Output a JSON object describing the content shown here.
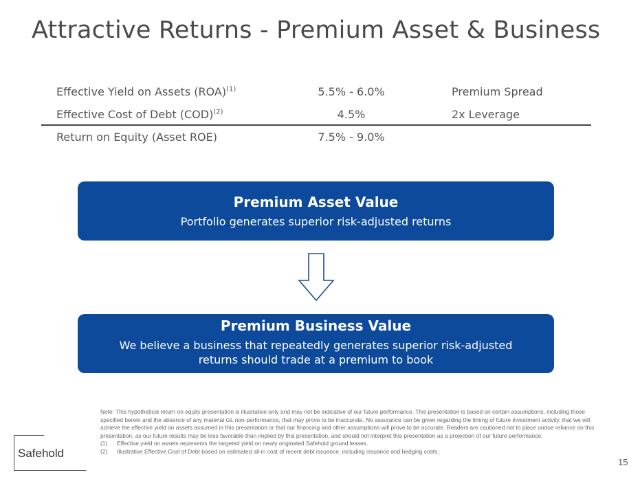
{
  "title": "Attractive Returns - Premium Asset & Business",
  "table": {
    "rows": [
      {
        "label": "Effective Yield on Assets (ROA)",
        "sup": "(1)",
        "value": "5.5% - 6.0%",
        "note": "Premium Spread"
      },
      {
        "label": "Effective Cost of Debt (COD)",
        "sup": "(2)",
        "value": "4.5%",
        "note": "2x Leverage"
      },
      {
        "label": "Return on Equity (Asset ROE)",
        "sup": "",
        "value": "7.5% - 9.0%",
        "note": ""
      }
    ]
  },
  "box_asset": {
    "title": "Premium Asset Value",
    "subtitle": "Portfolio generates superior risk-adjusted returns"
  },
  "box_business": {
    "title": "Premium Business Value",
    "subtitle_line1": "We believe a business that repeatedly generates superior risk-adjusted",
    "subtitle_line2": "returns should trade at a premium to book"
  },
  "note": {
    "text": "Note: This hypothetical return on equity presentation is illustrative only and may not be indicative of our future performance. This presentation is based on certain assumptions, including those specified herein and the absence of any material GL non-performance, that may prove to be inaccurate. No assurance can be given regarding the timing of future investment activity, that we will achieve the effective yield on assets assumed in this presentation or that our financing and other assumptions will prove to be accurate. Readers are cautioned not to place undue reliance on this presentation, as our future results may be less favorable than implied by this presentation, and should not interpret this presentation as a projection of our future performance.",
    "footnotes": [
      {
        "num": "(1)",
        "text": "Effective yield on assets represents the targeted yield on newly originated Safehold ground leases."
      },
      {
        "num": "(2)",
        "text": "Illustrative Effective Cost of Debt based on estimated all-in cost of recent debt issuance, including issuance and hedging costs."
      }
    ]
  },
  "logo": {
    "text": "Safehold"
  },
  "page_number": "15",
  "colors": {
    "box_fill": "#0d4a9c",
    "arrow_stroke": "#1f4e8c"
  }
}
